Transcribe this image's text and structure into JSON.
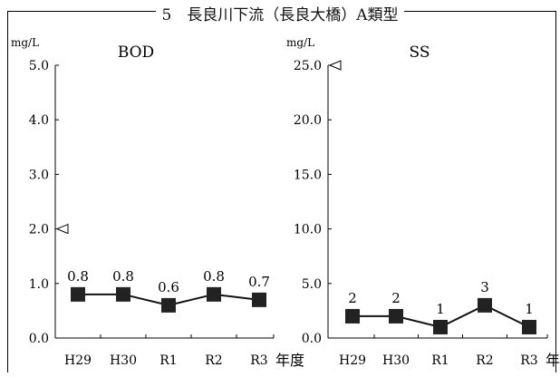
{
  "title": "5　長良川下流（長良大橋）A類型",
  "x_unit": "年度",
  "chart_data": [
    {
      "type": "line",
      "title": "BOD",
      "ylabel": "mg/L",
      "ylim": [
        0,
        5
      ],
      "yticks": [
        "0.0",
        "1.0",
        "2.0",
        "3.0",
        "4.0",
        "5.0"
      ],
      "categories": [
        "H29",
        "H30",
        "R1",
        "R2",
        "R3"
      ],
      "values": [
        0.8,
        0.8,
        0.6,
        0.8,
        0.7
      ],
      "value_labels": [
        "0.8",
        "0.8",
        "0.6",
        "0.8",
        "0.7"
      ],
      "standard": 2.0,
      "grid": false,
      "marker": "square"
    },
    {
      "type": "line",
      "title": "SS",
      "ylabel": "mg/L",
      "ylim": [
        0,
        25
      ],
      "yticks": [
        "0.0",
        "5.0",
        "10.0",
        "15.0",
        "20.0",
        "25.0"
      ],
      "categories": [
        "H29",
        "H30",
        "R1",
        "R2",
        "R3"
      ],
      "values": [
        2,
        2,
        1,
        3,
        1
      ],
      "value_labels": [
        "2",
        "2",
        "1",
        "3",
        "1"
      ],
      "standard": 25.0,
      "grid": false,
      "marker": "square"
    }
  ]
}
